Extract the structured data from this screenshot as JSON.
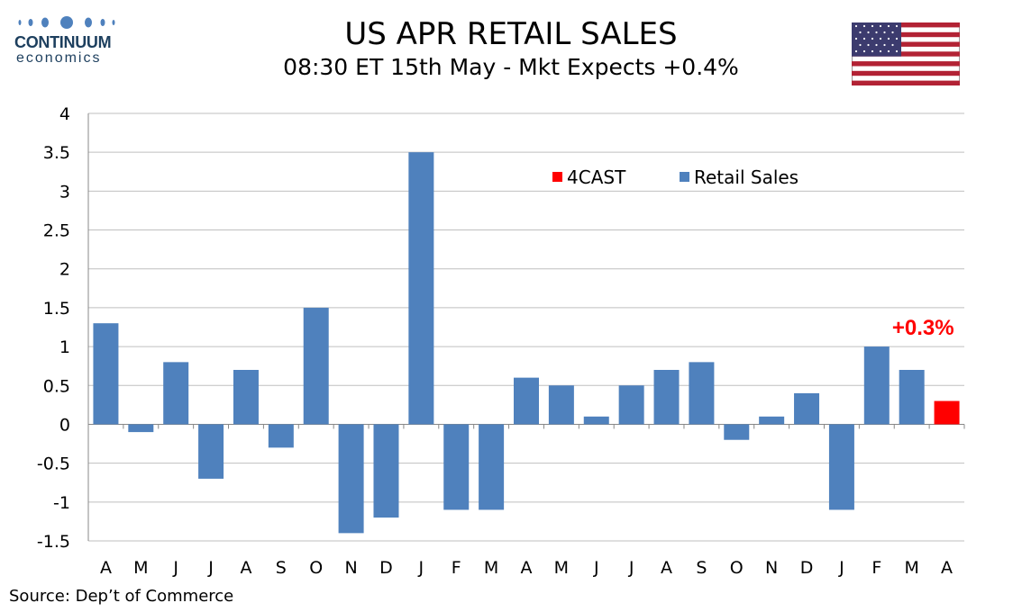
{
  "logo": {
    "name": "CONTINUUM",
    "sub": "economics"
  },
  "header": {
    "title": "US APR RETAIL SALES",
    "subtitle": "08:30 ET 15th May - Mkt Expects +0.4%"
  },
  "source": "Source: Dep’t of Commerce",
  "colors": {
    "retail": "#4f81bd",
    "forecast": "#ff0000",
    "grid": "#bfbfbf",
    "annotation": "#ff0000"
  },
  "chart_data": {
    "type": "bar",
    "title": "US APR RETAIL SALES",
    "subtitle": "08:30 ET 15th May - Mkt Expects +0.4%",
    "xlabel": "",
    "ylabel": "",
    "ylim": [
      -1.5,
      4
    ],
    "yticks": [
      4,
      3.5,
      3,
      2.5,
      2,
      1.5,
      1,
      0.5,
      0,
      -0.5,
      -1,
      -1.5
    ],
    "grid": true,
    "legend_position": "top-right",
    "categories": [
      "A",
      "M",
      "J",
      "J",
      "A",
      "S",
      "O",
      "N",
      "D",
      "J",
      "F",
      "M",
      "A",
      "M",
      "J",
      "J",
      "A",
      "S",
      "O",
      "N",
      "D",
      "J",
      "F",
      "M",
      "A"
    ],
    "series": [
      {
        "name": "Retail Sales",
        "color": "#4f81bd",
        "values": [
          1.3,
          -0.1,
          0.8,
          -0.7,
          0.7,
          -0.3,
          1.5,
          -1.4,
          -1.2,
          3.5,
          -1.1,
          -1.1,
          0.6,
          0.5,
          0.1,
          0.5,
          0.7,
          0.8,
          -0.2,
          0.1,
          0.4,
          -1.1,
          1.0,
          0.7,
          null
        ]
      },
      {
        "name": "4CAST",
        "color": "#ff0000",
        "values": [
          null,
          null,
          null,
          null,
          null,
          null,
          null,
          null,
          null,
          null,
          null,
          null,
          null,
          null,
          null,
          null,
          null,
          null,
          null,
          null,
          null,
          null,
          null,
          null,
          0.3
        ]
      }
    ],
    "annotations": [
      {
        "category_index": 24,
        "text": "+0.3%"
      }
    ]
  }
}
